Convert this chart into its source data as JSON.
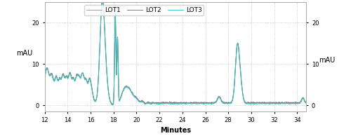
{
  "x_min": 12,
  "x_max": 34.8,
  "y_min": -1.5,
  "y_max": 25,
  "y_ticks": [
    0,
    10,
    20
  ],
  "x_ticks": [
    12,
    14,
    16,
    18,
    20,
    22,
    24,
    26,
    28,
    30,
    32,
    34
  ],
  "xlabel": "Minutes",
  "ylabel_left": "mAU",
  "ylabel_right": "mAU",
  "legend": [
    "LOT1",
    "LOT2",
    "LOT3"
  ],
  "colors": {
    "LOT1": "#b090b8",
    "LOT2": "#707878",
    "LOT3": "#30c8c0"
  },
  "background": "#ffffff",
  "grid_color": "#c0c0c0"
}
